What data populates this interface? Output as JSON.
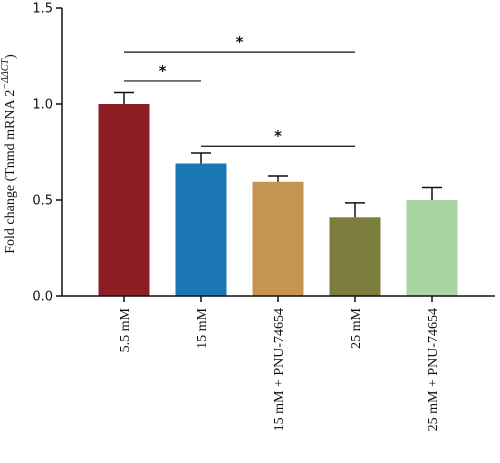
{
  "chart_data": {
    "type": "bar",
    "ylabel": "Fold change (Tnmd mRNA 2",
    "ylabel_superscript": "−ΔΔCT",
    "ylabel_close": ")",
    "ylim": [
      0,
      1.5
    ],
    "yticks": [
      {
        "value": 0.0,
        "label": "0.0"
      },
      {
        "value": 0.5,
        "label": "0.5"
      },
      {
        "value": 1.0,
        "label": "1.0"
      },
      {
        "value": 1.5,
        "label": "1.5"
      }
    ],
    "categories": [
      "5.5 mM",
      "15 mM",
      "15 mM + PNU-74654",
      "25 mM",
      "25 mM + PNU-74654"
    ],
    "values": [
      1.0,
      0.69,
      0.595,
      0.41,
      0.5
    ],
    "errors": [
      0.06,
      0.055,
      0.03,
      0.075,
      0.065
    ],
    "colors": [
      "#8d1e23",
      "#1a77b4",
      "#c59451",
      "#7b7e3e",
      "#a8d5a2"
    ],
    "significance": [
      {
        "from": 0,
        "to": 1,
        "y": 1.12,
        "label": "*"
      },
      {
        "from": 0,
        "to": 3,
        "y": 1.27,
        "label": "*"
      },
      {
        "from": 1,
        "to": 3,
        "y": 0.78,
        "label": "*"
      }
    ],
    "grid": false
  }
}
